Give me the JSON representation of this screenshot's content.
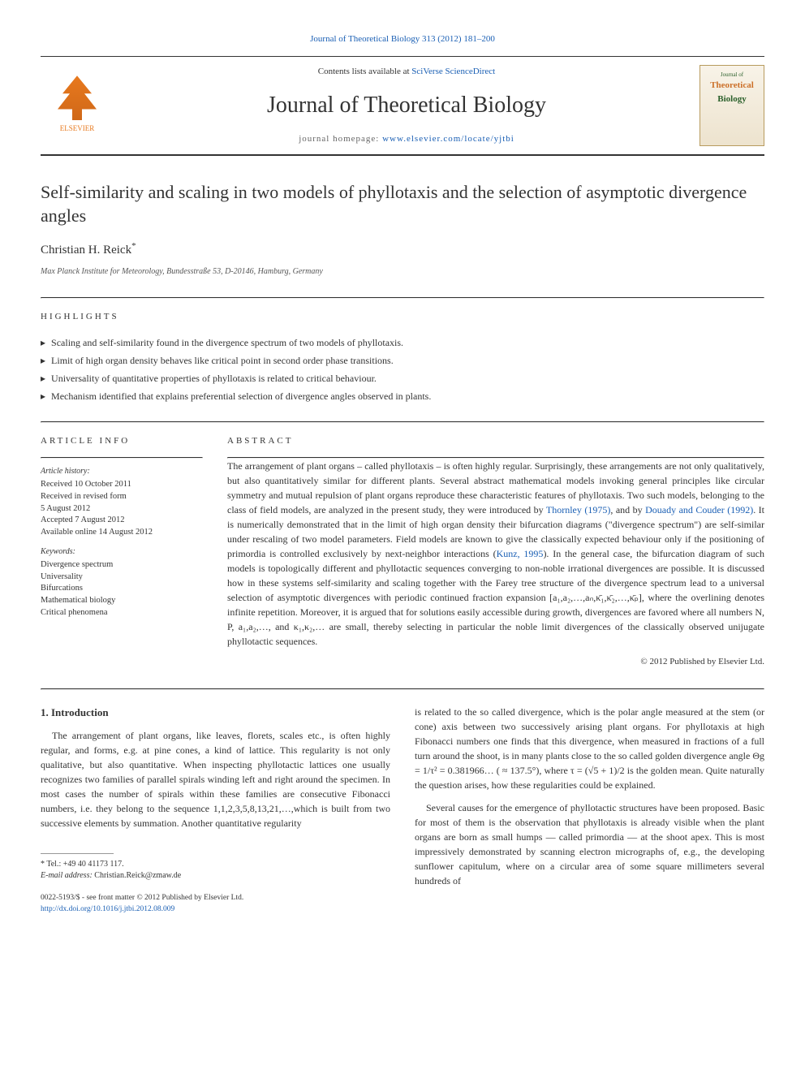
{
  "header": {
    "citation": "Journal of Theoretical Biology 313 (2012) 181–200",
    "contents_prefix": "Contents lists available at ",
    "contents_link": "SciVerse ScienceDirect",
    "journal_name": "Journal of Theoretical Biology",
    "homepage_prefix": "journal homepage: ",
    "homepage_link": "www.elsevier.com/locate/yjtbi",
    "publisher_name": "ELSEVIER",
    "cover": {
      "line1": "Journal of",
      "line2": "Theoretical",
      "line3": "Biology"
    }
  },
  "article": {
    "title": "Self-similarity and scaling in two models of phyllotaxis and the selection of asymptotic divergence angles",
    "author": "Christian H. Reick",
    "author_marker": "*",
    "affiliation": "Max Planck Institute for Meteorology, Bundesstraße 53, D-20146, Hamburg, Germany"
  },
  "highlights": {
    "label": "HIGHLIGHTS",
    "items": [
      "Scaling and self-similarity found in the divergence spectrum of two models of phyllotaxis.",
      "Limit of high organ density behaves like critical point in second order phase transitions.",
      "Universality of quantitative properties of phyllotaxis is related to critical behaviour.",
      "Mechanism identified that explains preferential selection of divergence angles observed in plants."
    ]
  },
  "info": {
    "label": "ARTICLE INFO",
    "history_heading": "Article history:",
    "history_lines": "Received 10 October 2011\nReceived in revised form\n5 August 2012\nAccepted 7 August 2012\nAvailable online 14 August 2012",
    "keywords_heading": "Keywords:",
    "keywords_lines": "Divergence spectrum\nUniversality\nBifurcations\nMathematical biology\nCritical phenomena"
  },
  "abstract": {
    "label": "ABSTRACT",
    "text_part1": "The arrangement of plant organs – called phyllotaxis – is often highly regular. Surprisingly, these arrangements are not only qualitatively, but also quantitatively similar for different plants. Several abstract mathematical models invoking general principles like circular symmetry and mutual repulsion of plant organs reproduce these characteristic features of phyllotaxis. Two such models, belonging to the class of field models, are analyzed in the present study, they were introduced by ",
    "link1": "Thornley (1975)",
    "text_part2": ", and by ",
    "link2": "Douady and Couder (1992)",
    "text_part3": ". It is numerically demonstrated that in the limit of high organ density their bifurcation diagrams (\"divergence spectrum\") are self-similar under rescaling of two model parameters. Field models are known to give the classically expected behaviour only if the positioning of primordia is controlled exclusively by next-neighbor interactions (",
    "link3": "Kunz, 1995",
    "text_part4": "). In the general case, the bifurcation diagram of such models is topologically different and phyllotactic sequences converging to non-noble irrational divergences are possible. It is discussed how in these systems self-similarity and scaling together with the Farey tree structure of the divergence spectrum lead to a universal selection of asymptotic divergences with periodic continued fraction expansion [a₁,a₂,…,aₙ,κ̄₁,κ̄₂,…,κ̄ₚ], where the overlining denotes infinite repetition. Moreover, it is argued that for solutions easily accessible during growth, divergences are favored where all numbers N, P, a₁,a₂,…, and κ₁,κ₂,… are small, thereby selecting in particular the noble limit divergences of the classically observed unijugate phyllotactic sequences.",
    "copyright": "© 2012 Published by Elsevier Ltd."
  },
  "body": {
    "section_heading": "1. Introduction",
    "col1_p1": "The arrangement of plant organs, like leaves, florets, scales etc., is often highly regular, and forms, e.g. at pine cones, a kind of lattice. This regularity is not only qualitative, but also quantitative. When inspecting phyllotactic lattices one usually recognizes two families of parallel spirals winding left and right around the specimen. In most cases the number of spirals within these families are consecutive Fibonacci numbers, i.e. they belong to the sequence 1,1,2,3,5,8,13,21,…,which is built from two successive elements by summation. Another quantitative regularity",
    "col2_p1": "is related to the so called divergence, which is the polar angle measured at the stem (or cone) axis between two successively arising plant organs. For phyllotaxis at high Fibonacci numbers one finds that this divergence, when measured in fractions of a full turn around the shoot, is in many plants close to the so called golden divergence angle Θg = 1/τ² = 0.381966… ( ≈ 137.5°), where τ = (√5 + 1)/2 is the golden mean. Quite naturally the question arises, how these regularities could be explained.",
    "col2_p2": "Several causes for the emergence of phyllotactic structures have been proposed. Basic for most of them is the observation that phyllotaxis is already visible when the plant organs are born as small humps — called primordia — at the shoot apex. This is most impressively demonstrated by scanning electron micrographs of, e.g., the developing sunflower capitulum, where on a circular area of some square millimeters several hundreds of"
  },
  "footnotes": {
    "tel_label": "* Tel.: ",
    "tel": "+49 40 41173 117.",
    "email_label": "E-mail address: ",
    "email": "Christian.Reick@zmaw.de"
  },
  "bottom": {
    "issn": "0022-5193/$ - see front matter © 2012 Published by Elsevier Ltd.",
    "doi": "http://dx.doi.org/10.1016/j.jtbi.2012.08.009"
  },
  "colors": {
    "link": "#1a5fb4",
    "elsevier_orange": "#e8791e",
    "text": "#333333",
    "background": "#ffffff"
  }
}
